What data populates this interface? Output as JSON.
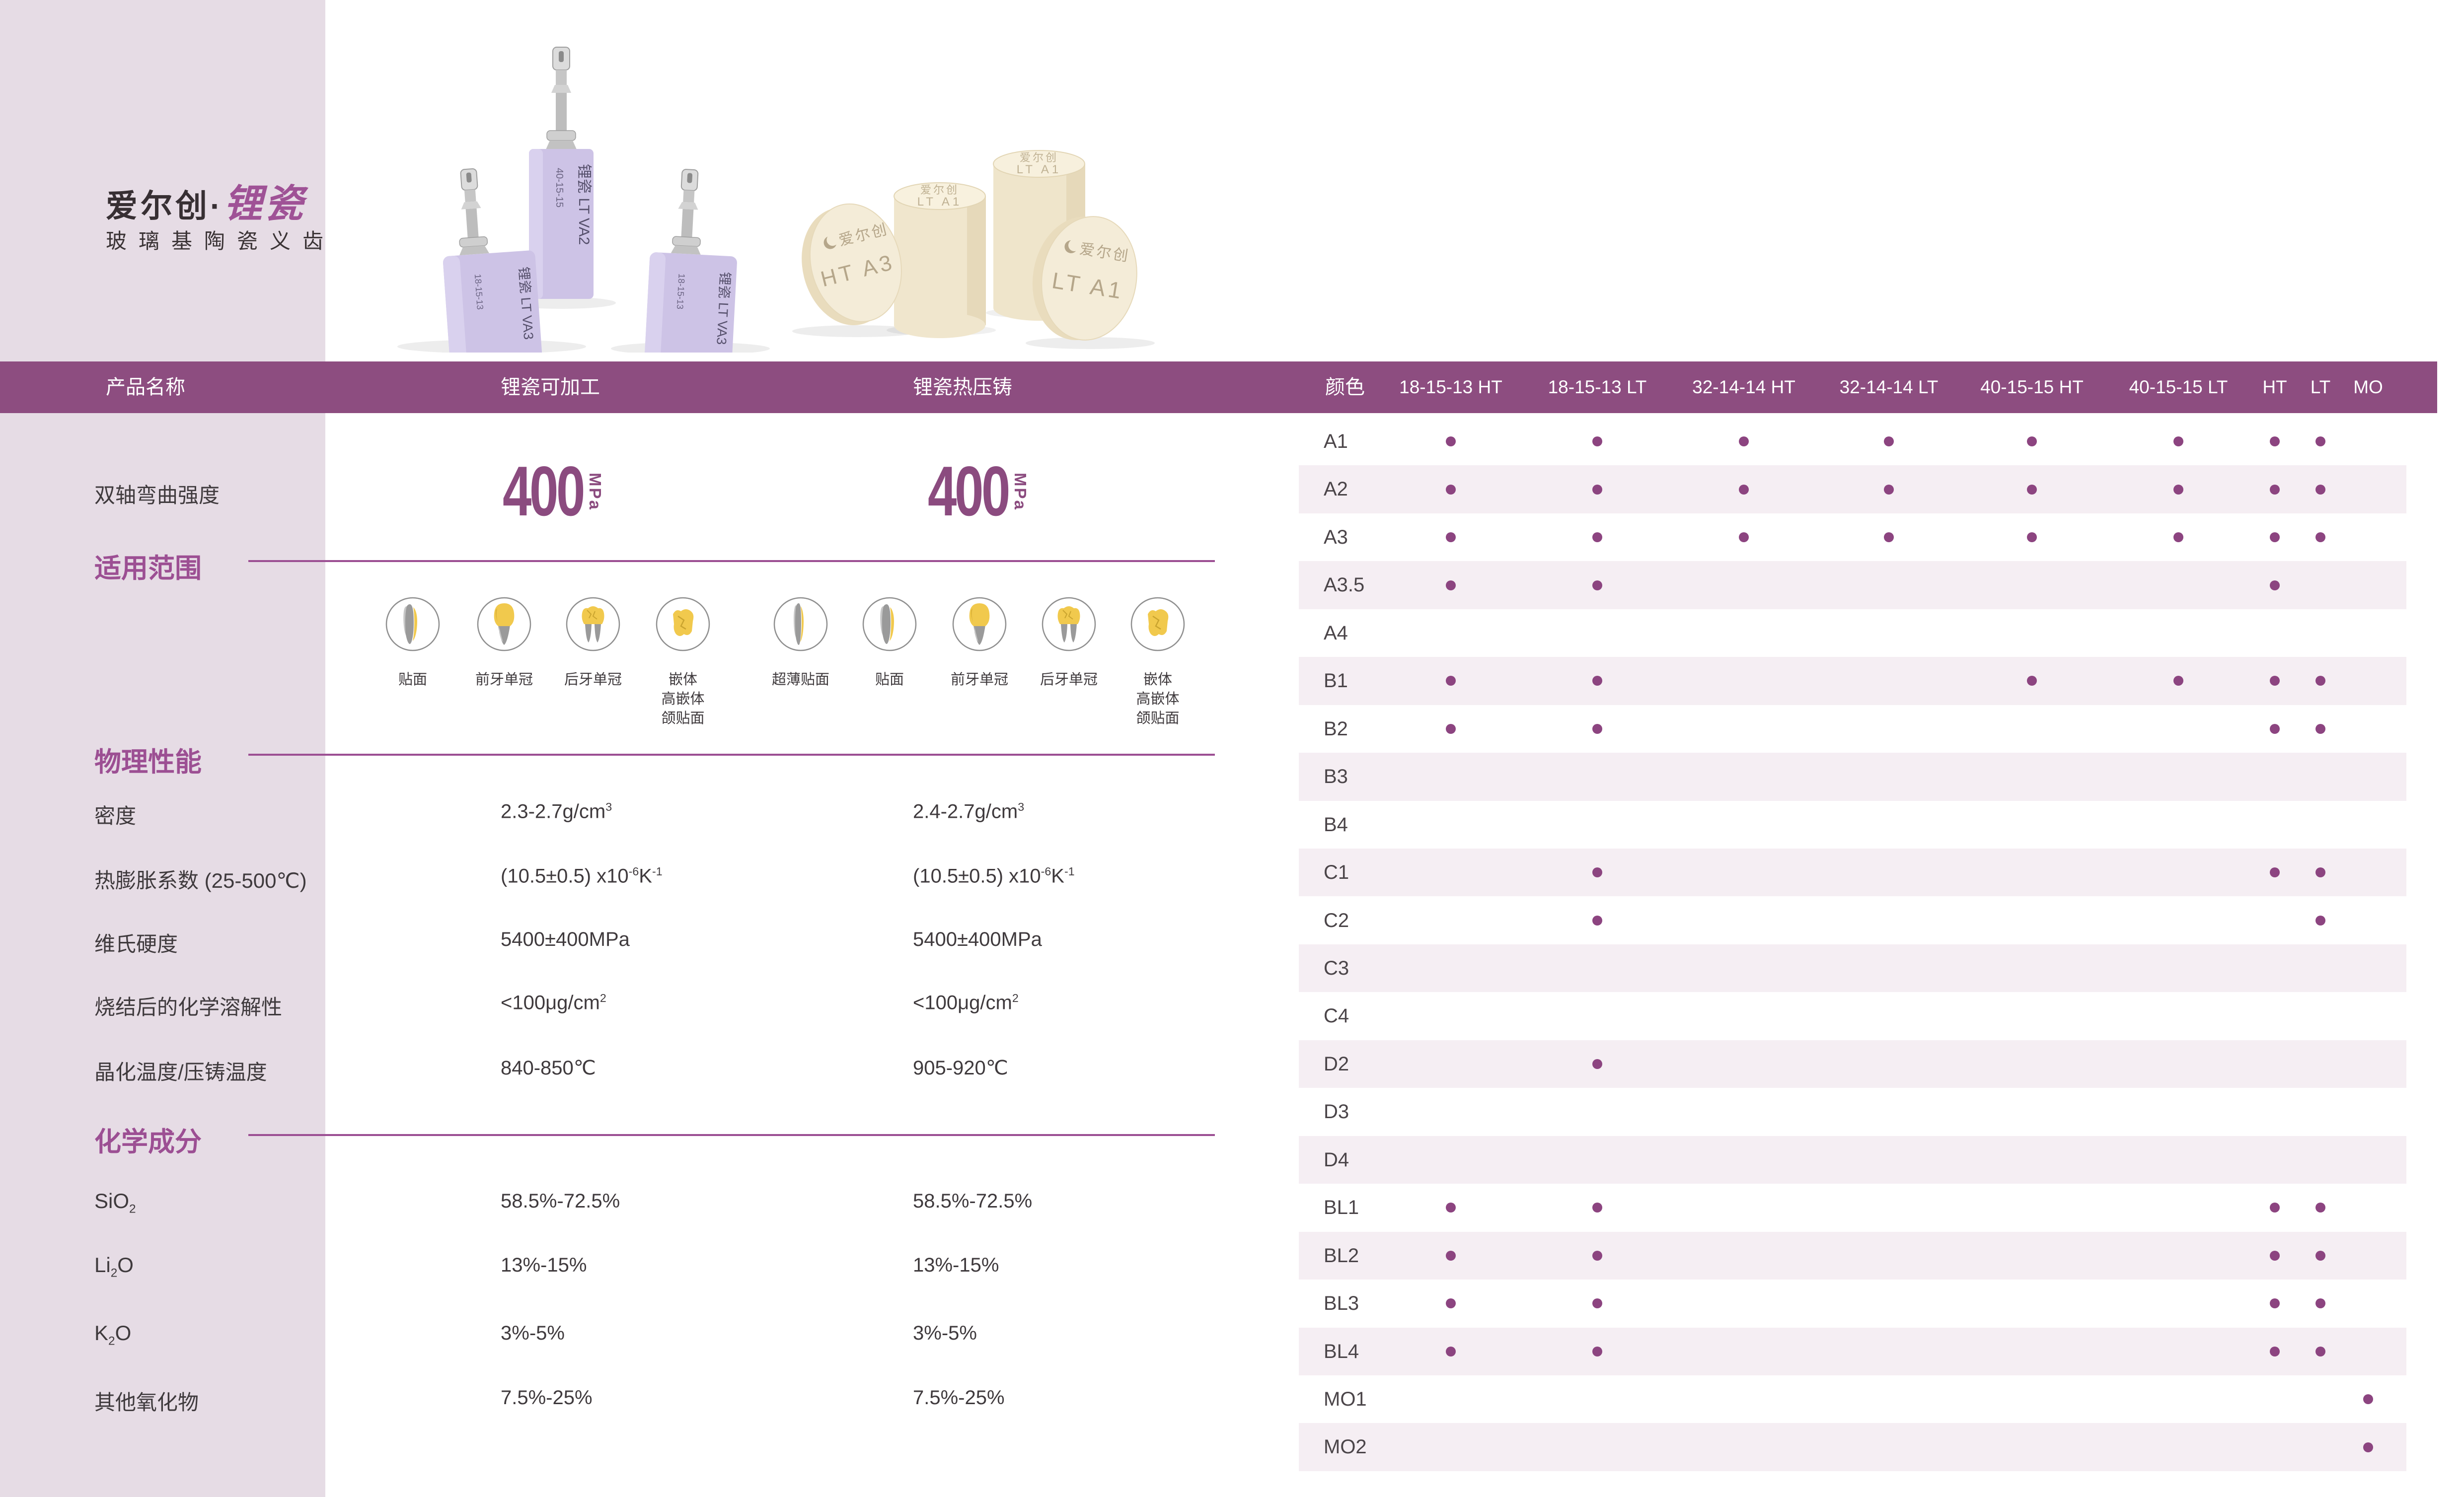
{
  "brand": {
    "name_dark": "爱尔创·",
    "name_accent": "锂瓷",
    "subtitle": "玻璃基陶瓷义齿"
  },
  "colors": {
    "accent_purple": "#9c4f93",
    "bar_purple": "#8d4d80",
    "sidebar_pink": "#e6dce5",
    "row_pink": "#f5eef3",
    "dot_purple": "#8c4480",
    "block_lilac": "#cdc3e6",
    "ingot_cream": "#f2e9d3"
  },
  "product_images": {
    "blocks": {
      "left": {
        "main": "锂瓷 LT VA3",
        "code": "18-15-13"
      },
      "center": {
        "main": "锂瓷 LT VA2",
        "code": "40-15-15"
      },
      "right": {
        "main": "锂瓷 LT VA3",
        "code": "18-15-13"
      }
    },
    "ingots": {
      "disc_left": {
        "brand": "爱尔创",
        "shade": "HT A3"
      },
      "cylinder_mid": {
        "brand": "爱尔创",
        "shade": "LT A1"
      },
      "cylinder_back": {
        "brand": "爱尔创",
        "shade": "LT A1"
      },
      "disc_right": {
        "brand": "爱尔创",
        "shade": "LT A1"
      }
    }
  },
  "header": {
    "product_name": "产品名称",
    "machinable": "锂瓷可加工",
    "pressable": "锂瓷热压铸",
    "shade": "颜色",
    "shade_columns": [
      "18-15-13 HT",
      "18-15-13 LT",
      "32-14-14 HT",
      "32-14-14 LT",
      "40-15-15 HT",
      "40-15-15 LT",
      "HT",
      "LT",
      "MO"
    ]
  },
  "strength": {
    "label": "双轴弯曲强度",
    "machinable_value": "400",
    "pressable_value": "400",
    "unit": "MPa"
  },
  "sections": {
    "indications": "适用范围",
    "physical": "物理性能",
    "chemical": "化学成分"
  },
  "indications": {
    "machinable": [
      {
        "icon": "veneer",
        "label": [
          "贴面"
        ]
      },
      {
        "icon": "anterior-crown",
        "label": [
          "前牙单冠"
        ]
      },
      {
        "icon": "posterior-crown",
        "label": [
          "后牙单冠"
        ]
      },
      {
        "icon": "inlay",
        "label": [
          "嵌体",
          "高嵌体",
          "颌贴面"
        ]
      }
    ],
    "pressable": [
      {
        "icon": "thin-veneer",
        "label": [
          "超薄贴面"
        ]
      },
      {
        "icon": "veneer",
        "label": [
          "贴面"
        ]
      },
      {
        "icon": "anterior-crown",
        "label": [
          "前牙单冠"
        ]
      },
      {
        "icon": "posterior-crown",
        "label": [
          "后牙单冠"
        ]
      },
      {
        "icon": "inlay",
        "label": [
          "嵌体",
          "高嵌体",
          "颌贴面"
        ]
      }
    ]
  },
  "physical_rows": [
    {
      "label": [
        {
          "t": "密度"
        }
      ],
      "machinable": [
        {
          "t": "2.3-2.7g/cm"
        },
        {
          "sup": "3"
        }
      ],
      "pressable": [
        {
          "t": "2.4-2.7g/cm"
        },
        {
          "sup": "3"
        }
      ]
    },
    {
      "label": [
        {
          "t": "热膨胀系数 (25-500℃)"
        }
      ],
      "machinable": [
        {
          "t": "(10.5±0.5) x10"
        },
        {
          "sup": "-6"
        },
        {
          "t": "K"
        },
        {
          "sup": "-1"
        }
      ],
      "pressable": [
        {
          "t": "(10.5±0.5) x10"
        },
        {
          "sup": "-6"
        },
        {
          "t": "K"
        },
        {
          "sup": "-1"
        }
      ]
    },
    {
      "label": [
        {
          "t": "维氏硬度"
        }
      ],
      "machinable": [
        {
          "t": "5400±400MPa"
        }
      ],
      "pressable": [
        {
          "t": "5400±400MPa"
        }
      ]
    },
    {
      "label": [
        {
          "t": "烧结后的化学溶解性"
        }
      ],
      "machinable": [
        {
          "t": "<100μg/cm"
        },
        {
          "sup": "2"
        }
      ],
      "pressable": [
        {
          "t": "<100μg/cm"
        },
        {
          "sup": "2"
        }
      ]
    },
    {
      "label": [
        {
          "t": "晶化温度/压铸温度"
        }
      ],
      "machinable": [
        {
          "t": "840-850℃"
        }
      ],
      "pressable": [
        {
          "t": "905-920℃"
        }
      ]
    }
  ],
  "chemical_rows": [
    {
      "label": [
        {
          "t": "SiO"
        },
        {
          "sub": "2"
        }
      ],
      "machinable": [
        {
          "t": "58.5%-72.5%"
        }
      ],
      "pressable": [
        {
          "t": "58.5%-72.5%"
        }
      ]
    },
    {
      "label": [
        {
          "t": "Li"
        },
        {
          "sub": "2"
        },
        {
          "t": "O"
        }
      ],
      "machinable": [
        {
          "t": "13%-15%"
        }
      ],
      "pressable": [
        {
          "t": "13%-15%"
        }
      ]
    },
    {
      "label": [
        {
          "t": "K"
        },
        {
          "sub": "2"
        },
        {
          "t": "O"
        }
      ],
      "machinable": [
        {
          "t": "3%-5%"
        }
      ],
      "pressable": [
        {
          "t": "3%-5%"
        }
      ]
    },
    {
      "label": [
        {
          "t": "其他氧化物"
        }
      ],
      "machinable": [
        {
          "t": "7.5%-25%"
        }
      ],
      "pressable": [
        {
          "t": "7.5%-25%"
        }
      ]
    }
  ],
  "shade_table": {
    "rows": [
      {
        "shade": "A1",
        "availability": [
          1,
          1,
          1,
          1,
          1,
          1,
          1,
          1,
          0
        ]
      },
      {
        "shade": "A2",
        "availability": [
          1,
          1,
          1,
          1,
          1,
          1,
          1,
          1,
          0
        ]
      },
      {
        "shade": "A3",
        "availability": [
          1,
          1,
          1,
          1,
          1,
          1,
          1,
          1,
          0
        ]
      },
      {
        "shade": "A3.5",
        "availability": [
          1,
          1,
          0,
          0,
          0,
          0,
          1,
          0,
          0
        ]
      },
      {
        "shade": "A4",
        "availability": [
          0,
          0,
          0,
          0,
          0,
          0,
          0,
          0,
          0
        ]
      },
      {
        "shade": "B1",
        "availability": [
          1,
          1,
          0,
          0,
          1,
          1,
          1,
          1,
          0
        ]
      },
      {
        "shade": "B2",
        "availability": [
          1,
          1,
          0,
          0,
          0,
          0,
          1,
          1,
          0
        ]
      },
      {
        "shade": "B3",
        "availability": [
          0,
          0,
          0,
          0,
          0,
          0,
          0,
          0,
          0
        ]
      },
      {
        "shade": "B4",
        "availability": [
          0,
          0,
          0,
          0,
          0,
          0,
          0,
          0,
          0
        ]
      },
      {
        "shade": "C1",
        "availability": [
          0,
          1,
          0,
          0,
          0,
          0,
          1,
          1,
          0
        ]
      },
      {
        "shade": "C2",
        "availability": [
          0,
          1,
          0,
          0,
          0,
          0,
          0,
          1,
          0
        ]
      },
      {
        "shade": "C3",
        "availability": [
          0,
          0,
          0,
          0,
          0,
          0,
          0,
          0,
          0
        ]
      },
      {
        "shade": "C4",
        "availability": [
          0,
          0,
          0,
          0,
          0,
          0,
          0,
          0,
          0
        ]
      },
      {
        "shade": "D2",
        "availability": [
          0,
          1,
          0,
          0,
          0,
          0,
          0,
          0,
          0
        ]
      },
      {
        "shade": "D3",
        "availability": [
          0,
          0,
          0,
          0,
          0,
          0,
          0,
          0,
          0
        ]
      },
      {
        "shade": "D4",
        "availability": [
          0,
          0,
          0,
          0,
          0,
          0,
          0,
          0,
          0
        ]
      },
      {
        "shade": "BL1",
        "availability": [
          1,
          1,
          0,
          0,
          0,
          0,
          1,
          1,
          0
        ]
      },
      {
        "shade": "BL2",
        "availability": [
          1,
          1,
          0,
          0,
          0,
          0,
          1,
          1,
          0
        ]
      },
      {
        "shade": "BL3",
        "availability": [
          1,
          1,
          0,
          0,
          0,
          0,
          1,
          1,
          0
        ]
      },
      {
        "shade": "BL4",
        "availability": [
          1,
          1,
          0,
          0,
          0,
          0,
          1,
          1,
          0
        ]
      },
      {
        "shade": "MO1",
        "availability": [
          0,
          0,
          0,
          0,
          0,
          0,
          0,
          0,
          1
        ]
      },
      {
        "shade": "MO2",
        "availability": [
          0,
          0,
          0,
          0,
          0,
          0,
          0,
          0,
          1
        ]
      }
    ]
  }
}
